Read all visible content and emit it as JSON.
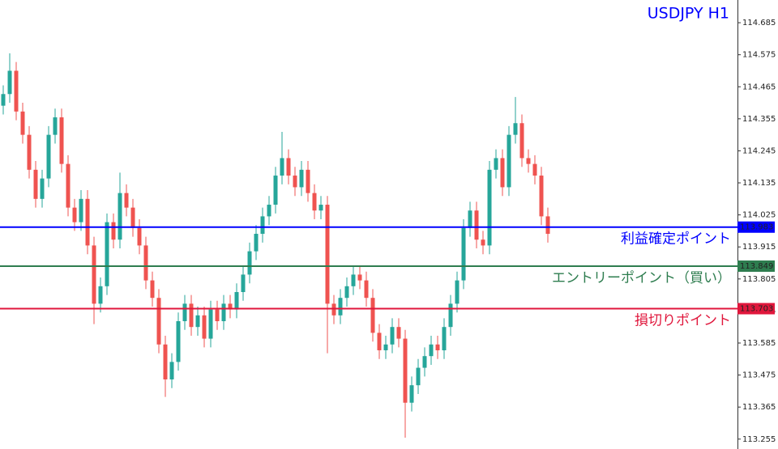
{
  "chart_data": {
    "type": "candlestick",
    "title": "USDJPY H1",
    "ylim": [
      113.221,
      114.763
    ],
    "yticks": [
      114.685,
      114.575,
      114.465,
      114.355,
      114.245,
      114.135,
      114.025,
      113.915,
      113.805,
      113.695,
      113.585,
      113.475,
      113.365,
      113.255
    ],
    "up_color": "#26a69a",
    "down_color": "#ef5350",
    "open": [
      114.4,
      114.44,
      114.52,
      114.38,
      114.3,
      114.18,
      114.08,
      114.15,
      114.3,
      114.36,
      114.2,
      114.05,
      114.0,
      114.08,
      113.92,
      113.72,
      113.78,
      114.0,
      113.94,
      114.1,
      114.05,
      113.98,
      113.92,
      113.8,
      113.74,
      113.58,
      113.46,
      113.52,
      113.66,
      113.72,
      113.64,
      113.68,
      113.6,
      113.7,
      113.66,
      113.72,
      113.7,
      113.76,
      113.82,
      113.9,
      113.96,
      114.02,
      114.06,
      114.16,
      114.22,
      114.16,
      114.12,
      114.18,
      114.1,
      114.04,
      114.06,
      113.72,
      113.68,
      113.74,
      113.78,
      113.82,
      113.8,
      113.74,
      113.62,
      113.56,
      113.58,
      113.64,
      113.6,
      113.38,
      113.44,
      113.5,
      113.54,
      113.58,
      113.56,
      113.64,
      113.72,
      113.8,
      113.98,
      114.04,
      113.94,
      113.92,
      114.18,
      114.22,
      114.12,
      114.3,
      114.34,
      114.22,
      114.2,
      114.16,
      114.02
    ],
    "high": [
      114.47,
      114.58,
      114.55,
      114.41,
      114.33,
      114.21,
      114.18,
      114.33,
      114.39,
      114.39,
      114.23,
      114.08,
      114.11,
      114.11,
      113.95,
      113.81,
      114.03,
      114.03,
      114.17,
      114.13,
      114.08,
      114.01,
      113.95,
      113.83,
      113.77,
      113.61,
      113.55,
      113.69,
      113.75,
      113.75,
      113.71,
      113.71,
      113.73,
      113.73,
      113.75,
      113.75,
      113.79,
      113.85,
      113.93,
      113.99,
      114.05,
      114.09,
      114.19,
      114.31,
      114.25,
      114.19,
      114.21,
      114.21,
      114.13,
      114.09,
      114.09,
      113.75,
      113.77,
      113.81,
      113.85,
      113.85,
      113.83,
      113.77,
      113.65,
      113.61,
      113.67,
      113.67,
      113.63,
      113.47,
      113.53,
      113.57,
      113.61,
      113.61,
      113.67,
      113.75,
      113.83,
      114.01,
      114.07,
      114.07,
      113.97,
      114.21,
      114.25,
      114.25,
      114.33,
      114.43,
      114.37,
      114.25,
      114.23,
      114.19,
      114.05
    ],
    "low": [
      114.37,
      114.41,
      114.35,
      114.27,
      114.15,
      114.05,
      114.05,
      114.12,
      114.27,
      114.17,
      114.02,
      113.97,
      113.97,
      113.89,
      113.65,
      113.69,
      113.75,
      113.91,
      113.91,
      114.02,
      113.95,
      113.89,
      113.77,
      113.71,
      113.55,
      113.4,
      113.43,
      113.49,
      113.63,
      113.61,
      113.61,
      113.57,
      113.57,
      113.63,
      113.63,
      113.67,
      113.67,
      113.73,
      113.79,
      113.87,
      113.93,
      113.99,
      114.03,
      114.13,
      114.13,
      114.09,
      114.09,
      114.07,
      114.01,
      114.01,
      113.55,
      113.65,
      113.65,
      113.71,
      113.75,
      113.77,
      113.71,
      113.59,
      113.53,
      113.53,
      113.55,
      113.57,
      113.26,
      113.35,
      113.41,
      113.47,
      113.51,
      113.53,
      113.53,
      113.61,
      113.69,
      113.77,
      113.95,
      113.91,
      113.89,
      113.89,
      114.15,
      114.09,
      114.09,
      114.27,
      114.19,
      114.17,
      114.13,
      113.99,
      113.93
    ],
    "close": [
      114.44,
      114.52,
      114.38,
      114.3,
      114.18,
      114.08,
      114.15,
      114.3,
      114.36,
      114.2,
      114.05,
      114.0,
      114.08,
      113.92,
      113.72,
      113.78,
      114.0,
      113.94,
      114.1,
      114.05,
      113.98,
      113.92,
      113.8,
      113.74,
      113.58,
      113.46,
      113.52,
      113.66,
      113.72,
      113.64,
      113.68,
      113.6,
      113.7,
      113.66,
      113.72,
      113.7,
      113.76,
      113.82,
      113.9,
      113.96,
      114.02,
      114.06,
      114.16,
      114.22,
      114.16,
      114.12,
      114.18,
      114.1,
      114.04,
      114.06,
      113.72,
      113.68,
      113.74,
      113.78,
      113.82,
      113.8,
      113.74,
      113.62,
      113.56,
      113.58,
      113.64,
      113.6,
      113.38,
      113.44,
      113.5,
      113.54,
      113.58,
      113.56,
      113.64,
      113.72,
      113.8,
      113.98,
      114.04,
      113.94,
      113.92,
      114.18,
      114.22,
      114.12,
      114.3,
      114.34,
      114.22,
      114.2,
      114.16,
      114.02,
      113.96
    ],
    "levels": [
      {
        "value": 113.983,
        "label": "利益確定ポイント",
        "color": "#0000ff"
      },
      {
        "value": 113.849,
        "label": "エントリーポイント（買い）",
        "color": "#2e7d4f"
      },
      {
        "value": 113.703,
        "label": "損切りポイント",
        "color": "#e0173c"
      }
    ]
  }
}
